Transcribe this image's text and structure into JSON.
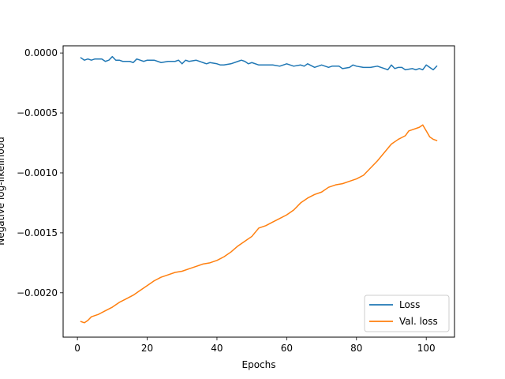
{
  "chart_data": {
    "type": "line",
    "title": "",
    "xlabel": "Epochs",
    "ylabel": "Negative log-likelihood",
    "xlim": [
      -4.1,
      108.1
    ],
    "ylim": [
      -0.00237,
      6e-05
    ],
    "grid": false,
    "legend_position": "lower-right",
    "xticks": [
      0,
      20,
      40,
      60,
      80,
      100
    ],
    "xtick_labels": [
      "0",
      "20",
      "40",
      "60",
      "80",
      "100"
    ],
    "yticks": [
      0.0,
      -0.0005,
      -0.001,
      -0.0015,
      -0.002
    ],
    "ytick_labels": [
      "0.0000",
      "−0.0005",
      "−0.0010",
      "−0.0015",
      "−0.0020"
    ],
    "series": [
      {
        "name": "Loss",
        "color": "#1f77b4",
        "points": [
          [
            1,
            -4e-05
          ],
          [
            2,
            -6e-05
          ],
          [
            3,
            -5e-05
          ],
          [
            4,
            -6e-05
          ],
          [
            5,
            -5e-05
          ],
          [
            6,
            -5e-05
          ],
          [
            7,
            -5e-05
          ],
          [
            8,
            -7e-05
          ],
          [
            9,
            -6e-05
          ],
          [
            10,
            -3e-05
          ],
          [
            11,
            -6e-05
          ],
          [
            12,
            -6e-05
          ],
          [
            13,
            -7e-05
          ],
          [
            14,
            -7e-05
          ],
          [
            15,
            -7e-05
          ],
          [
            16,
            -8e-05
          ],
          [
            17,
            -5e-05
          ],
          [
            18,
            -6e-05
          ],
          [
            19,
            -7e-05
          ],
          [
            20,
            -6e-05
          ],
          [
            22,
            -6e-05
          ],
          [
            24,
            -8e-05
          ],
          [
            26,
            -7e-05
          ],
          [
            28,
            -7e-05
          ],
          [
            29,
            -6e-05
          ],
          [
            30,
            -9e-05
          ],
          [
            31,
            -6e-05
          ],
          [
            32,
            -7e-05
          ],
          [
            34,
            -6e-05
          ],
          [
            36,
            -8e-05
          ],
          [
            37,
            -9e-05
          ],
          [
            38,
            -8e-05
          ],
          [
            40,
            -9e-05
          ],
          [
            41,
            -0.0001
          ],
          [
            42,
            -0.0001
          ],
          [
            44,
            -9e-05
          ],
          [
            46,
            -7e-05
          ],
          [
            47,
            -6e-05
          ],
          [
            48,
            -7e-05
          ],
          [
            49,
            -9e-05
          ],
          [
            50,
            -8e-05
          ],
          [
            52,
            -0.0001
          ],
          [
            54,
            -0.0001
          ],
          [
            56,
            -0.0001
          ],
          [
            58,
            -0.00011
          ],
          [
            60,
            -9e-05
          ],
          [
            62,
            -0.00011
          ],
          [
            64,
            -0.0001
          ],
          [
            65,
            -0.00011
          ],
          [
            66,
            -9e-05
          ],
          [
            68,
            -0.00012
          ],
          [
            70,
            -0.0001
          ],
          [
            72,
            -0.00012
          ],
          [
            73,
            -0.00011
          ],
          [
            74,
            -0.00011
          ],
          [
            75,
            -0.00011
          ],
          [
            76,
            -0.00013
          ],
          [
            78,
            -0.00012
          ],
          [
            79,
            -0.0001
          ],
          [
            80,
            -0.00011
          ],
          [
            82,
            -0.00012
          ],
          [
            84,
            -0.00012
          ],
          [
            86,
            -0.00011
          ],
          [
            88,
            -0.00013
          ],
          [
            89,
            -0.00014
          ],
          [
            90,
            -0.0001
          ],
          [
            91,
            -0.00013
          ],
          [
            92,
            -0.00012
          ],
          [
            93,
            -0.00012
          ],
          [
            94,
            -0.00014
          ],
          [
            96,
            -0.00013
          ],
          [
            97,
            -0.00014
          ],
          [
            98,
            -0.00013
          ],
          [
            99,
            -0.00014
          ],
          [
            100,
            -0.0001
          ],
          [
            101,
            -0.00012
          ],
          [
            102,
            -0.00014
          ],
          [
            103,
            -0.00011
          ]
        ]
      },
      {
        "name": "Val. loss",
        "color": "#ff7f0e",
        "points": [
          [
            1,
            -0.00224
          ],
          [
            2,
            -0.00225
          ],
          [
            3,
            -0.00223
          ],
          [
            4,
            -0.0022
          ],
          [
            6,
            -0.00218
          ],
          [
            8,
            -0.00215
          ],
          [
            10,
            -0.00212
          ],
          [
            12,
            -0.00208
          ],
          [
            14,
            -0.00205
          ],
          [
            16,
            -0.00202
          ],
          [
            18,
            -0.00198
          ],
          [
            20,
            -0.00194
          ],
          [
            22,
            -0.0019
          ],
          [
            24,
            -0.00187
          ],
          [
            26,
            -0.00185
          ],
          [
            28,
            -0.00183
          ],
          [
            30,
            -0.00182
          ],
          [
            32,
            -0.0018
          ],
          [
            34,
            -0.00178
          ],
          [
            36,
            -0.00176
          ],
          [
            38,
            -0.00175
          ],
          [
            40,
            -0.00173
          ],
          [
            42,
            -0.0017
          ],
          [
            44,
            -0.00166
          ],
          [
            46,
            -0.00161
          ],
          [
            48,
            -0.00157
          ],
          [
            50,
            -0.00153
          ],
          [
            52,
            -0.00146
          ],
          [
            54,
            -0.00144
          ],
          [
            56,
            -0.00141
          ],
          [
            58,
            -0.00138
          ],
          [
            60,
            -0.00135
          ],
          [
            62,
            -0.00131
          ],
          [
            64,
            -0.00125
          ],
          [
            66,
            -0.00121
          ],
          [
            68,
            -0.00118
          ],
          [
            70,
            -0.00116
          ],
          [
            72,
            -0.00112
          ],
          [
            74,
            -0.0011
          ],
          [
            76,
            -0.00109
          ],
          [
            78,
            -0.00107
          ],
          [
            80,
            -0.00105
          ],
          [
            82,
            -0.00102
          ],
          [
            84,
            -0.00096
          ],
          [
            86,
            -0.0009
          ],
          [
            88,
            -0.00083
          ],
          [
            90,
            -0.00076
          ],
          [
            92,
            -0.00072
          ],
          [
            94,
            -0.00069
          ],
          [
            95,
            -0.00065
          ],
          [
            96,
            -0.00064
          ],
          [
            98,
            -0.00062
          ],
          [
            99,
            -0.0006
          ],
          [
            100,
            -0.00065
          ],
          [
            101,
            -0.0007
          ],
          [
            102,
            -0.00072
          ],
          [
            103,
            -0.00073
          ]
        ]
      }
    ]
  }
}
